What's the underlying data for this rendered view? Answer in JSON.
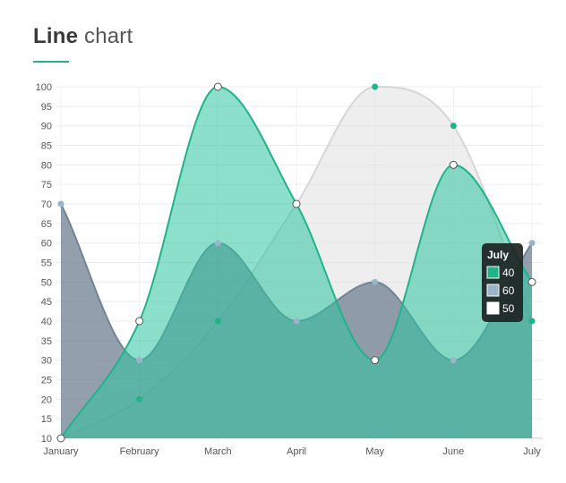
{
  "header": {
    "title_bold": "Line",
    "title_light": "chart"
  },
  "chart_data": {
    "type": "line",
    "categories": [
      "January",
      "February",
      "March",
      "April",
      "May",
      "June",
      "July"
    ],
    "ylim": [
      10,
      100
    ],
    "yticks": [
      10,
      15,
      20,
      25,
      30,
      35,
      40,
      45,
      50,
      55,
      60,
      65,
      70,
      75,
      80,
      85,
      90,
      95,
      100
    ],
    "grid": true,
    "series": [
      {
        "values": [
          10,
          20,
          40,
          70,
          100,
          90,
          40
        ],
        "color": "#d6d6d6",
        "fill": "#e0e0e0",
        "point": "#1fb38a"
      },
      {
        "values": [
          70,
          30,
          60,
          40,
          50,
          30,
          60
        ],
        "color": "#6f8596",
        "fill": "#6f7f91",
        "point": "#9ab5c8"
      },
      {
        "values": [
          10,
          40,
          100,
          70,
          30,
          80,
          50
        ],
        "color": "#1fb38a",
        "fill": "#2ec4a0",
        "point": "#ffffff"
      }
    ],
    "tooltip": {
      "title": "July",
      "items": [
        {
          "value": "40",
          "color": "#1fb38a"
        },
        {
          "value": "60",
          "color": "#9ab5c8"
        },
        {
          "value": "50",
          "color": "#ffffff"
        }
      ]
    }
  }
}
